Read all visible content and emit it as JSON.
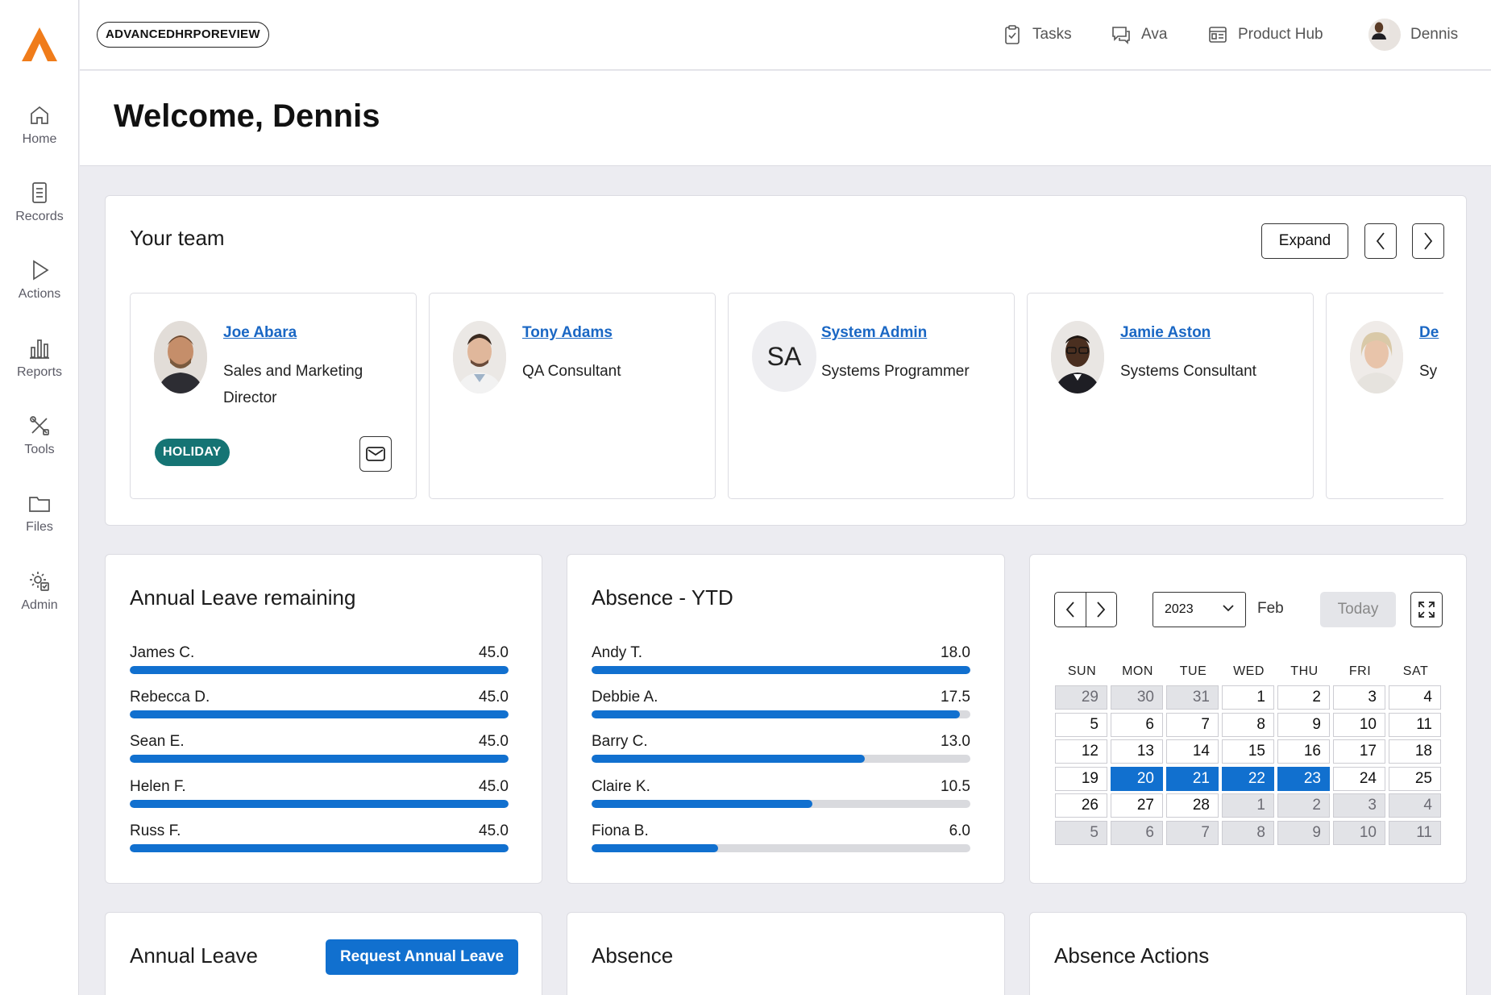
{
  "nav": {
    "items": [
      {
        "label": "Home",
        "icon": "home-icon"
      },
      {
        "label": "Records",
        "icon": "document-icon"
      },
      {
        "label": "Actions",
        "icon": "play-icon"
      },
      {
        "label": "Reports",
        "icon": "bar-chart-icon"
      },
      {
        "label": "Tools",
        "icon": "tools-icon"
      },
      {
        "label": "Files",
        "icon": "folder-icon"
      },
      {
        "label": "Admin",
        "icon": "admin-gear-icon"
      }
    ]
  },
  "topbar": {
    "environment": "ADVANCEDHRPOREVIEW",
    "tasks_label": "Tasks",
    "ava_label": "Ava",
    "product_hub_label": "Product Hub",
    "user_name": "Dennis"
  },
  "header": {
    "title": "Welcome, Dennis"
  },
  "team": {
    "title": "Your team",
    "expand_label": "Expand",
    "members": [
      {
        "name": "Joe Abara",
        "role": "Sales and Marketing Director",
        "badge": "HOLIDAY"
      },
      {
        "name": "Tony Adams",
        "role": "QA Consultant"
      },
      {
        "name": "System Admin",
        "role": "Systems Programmer",
        "initials": "SA"
      },
      {
        "name": "Jamie Aston",
        "role": "Systems Consultant"
      },
      {
        "name": "De",
        "role": "Sy"
      }
    ]
  },
  "annual_leave_remaining": {
    "title": "Annual Leave remaining",
    "max": 45.0,
    "rows": [
      {
        "label": "James C.",
        "value": "45.0",
        "fraction": 1.0
      },
      {
        "label": "Rebecca D.",
        "value": "45.0",
        "fraction": 1.0
      },
      {
        "label": "Sean E.",
        "value": "45.0",
        "fraction": 1.0
      },
      {
        "label": "Helen F.",
        "value": "45.0",
        "fraction": 1.0
      },
      {
        "label": "Russ F.",
        "value": "45.0",
        "fraction": 1.0
      }
    ]
  },
  "absence_ytd": {
    "title": "Absence - YTD",
    "rows": [
      {
        "label": "Andy T.",
        "value": "18.0",
        "fraction": 1.0
      },
      {
        "label": "Debbie A.",
        "value": "17.5",
        "fraction": 0.972
      },
      {
        "label": "Barry C.",
        "value": "13.0",
        "fraction": 0.722
      },
      {
        "label": "Claire K.",
        "value": "10.5",
        "fraction": 0.583
      },
      {
        "label": "Fiona B.",
        "value": "6.0",
        "fraction": 0.333
      }
    ]
  },
  "calendar": {
    "year": "2023",
    "month": "Feb",
    "today_label": "Today",
    "weekdays": [
      "SUN",
      "MON",
      "TUE",
      "WED",
      "THU",
      "FRI",
      "SAT"
    ],
    "weeks": [
      [
        {
          "d": "29",
          "o": true
        },
        {
          "d": "30",
          "o": true
        },
        {
          "d": "31",
          "o": true
        },
        {
          "d": "1"
        },
        {
          "d": "2"
        },
        {
          "d": "3"
        },
        {
          "d": "4"
        }
      ],
      [
        {
          "d": "5"
        },
        {
          "d": "6"
        },
        {
          "d": "7"
        },
        {
          "d": "8"
        },
        {
          "d": "9"
        },
        {
          "d": "10"
        },
        {
          "d": "11"
        }
      ],
      [
        {
          "d": "12"
        },
        {
          "d": "13"
        },
        {
          "d": "14"
        },
        {
          "d": "15"
        },
        {
          "d": "16"
        },
        {
          "d": "17"
        },
        {
          "d": "18"
        }
      ],
      [
        {
          "d": "19"
        },
        {
          "d": "20",
          "s": true
        },
        {
          "d": "21",
          "s": true
        },
        {
          "d": "22",
          "s": true
        },
        {
          "d": "23",
          "s": true
        },
        {
          "d": "24"
        },
        {
          "d": "25"
        }
      ],
      [
        {
          "d": "26"
        },
        {
          "d": "27"
        },
        {
          "d": "28"
        },
        {
          "d": "1",
          "o": true
        },
        {
          "d": "2",
          "o": true
        },
        {
          "d": "3",
          "o": true
        },
        {
          "d": "4",
          "o": true
        }
      ],
      [
        {
          "d": "5",
          "o": true
        },
        {
          "d": "6",
          "o": true
        },
        {
          "d": "7",
          "o": true
        },
        {
          "d": "8",
          "o": true
        },
        {
          "d": "9",
          "o": true
        },
        {
          "d": "10",
          "o": true
        },
        {
          "d": "11",
          "o": true
        }
      ]
    ],
    "selected_color": "#1170cf"
  },
  "bottom": {
    "annual_leave_title": "Annual Leave",
    "request_label": "Request Annual Leave",
    "absence_title": "Absence",
    "absence_actions_title": "Absence Actions"
  },
  "colors": {
    "brand_orange": "#f07c1a",
    "accent_blue": "#1170cf",
    "holiday_teal": "#157474"
  }
}
